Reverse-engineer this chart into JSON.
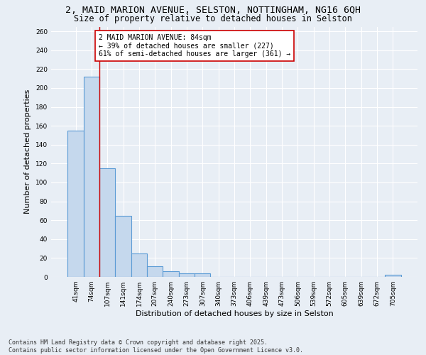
{
  "title_line1": "2, MAID MARION AVENUE, SELSTON, NOTTINGHAM, NG16 6QH",
  "title_line2": "Size of property relative to detached houses in Selston",
  "xlabel": "Distribution of detached houses by size in Selston",
  "ylabel": "Number of detached properties",
  "categories": [
    "41sqm",
    "74sqm",
    "107sqm",
    "141sqm",
    "174sqm",
    "207sqm",
    "240sqm",
    "273sqm",
    "307sqm",
    "340sqm",
    "373sqm",
    "406sqm",
    "439sqm",
    "473sqm",
    "506sqm",
    "539sqm",
    "572sqm",
    "605sqm",
    "639sqm",
    "672sqm",
    "705sqm"
  ],
  "values": [
    155,
    212,
    115,
    65,
    25,
    11,
    6,
    4,
    4,
    0,
    0,
    0,
    0,
    0,
    0,
    0,
    0,
    0,
    0,
    0,
    2
  ],
  "bar_color": "#c5d8ed",
  "bar_edge_color": "#5b9bd5",
  "vline_x": 1.5,
  "vline_color": "#cc0000",
  "annotation_text": "2 MAID MARION AVENUE: 84sqm\n← 39% of detached houses are smaller (227)\n61% of semi-detached houses are larger (361) →",
  "annotation_box_color": "#ffffff",
  "annotation_box_edge": "#cc0000",
  "ylim": [
    0,
    265
  ],
  "yticks": [
    0,
    20,
    40,
    60,
    80,
    100,
    120,
    140,
    160,
    180,
    200,
    220,
    240,
    260
  ],
  "background_color": "#e8eef5",
  "grid_color": "#ffffff",
  "footer_text": "Contains HM Land Registry data © Crown copyright and database right 2025.\nContains public sector information licensed under the Open Government Licence v3.0.",
  "title_fontsize": 9.5,
  "subtitle_fontsize": 8.5,
  "axis_label_fontsize": 8,
  "tick_fontsize": 6.5,
  "annotation_fontsize": 7,
  "footer_fontsize": 6
}
